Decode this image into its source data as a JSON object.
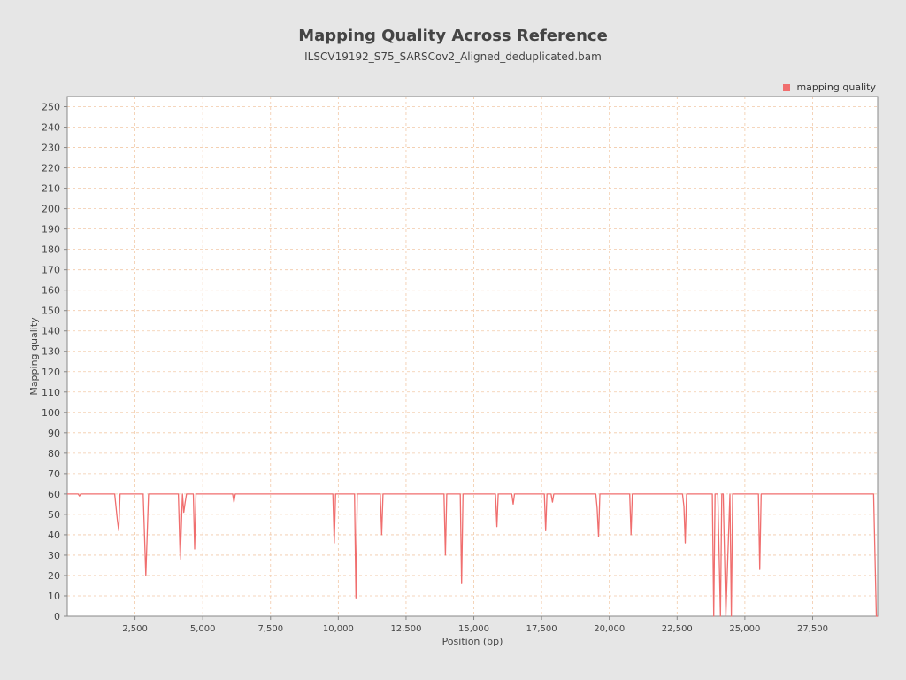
{
  "colors": {
    "background": "#e6e6e6",
    "plot_background": "#ffffff",
    "grid": "#f2c9a8",
    "series": "#f06e6e",
    "axis": "#888888",
    "text": "#444444"
  },
  "chart_data": {
    "type": "line",
    "title": "Mapping Quality Across Reference",
    "subtitle": "ILSCV19192_S75_SARSCov2_Aligned_deduplicated.bam",
    "xlabel": "Position (bp)",
    "ylabel": "Mapping quality",
    "xlim": [
      0,
      29900
    ],
    "ylim": [
      0,
      255
    ],
    "xticks": [
      2500,
      5000,
      7500,
      10000,
      12500,
      15000,
      17500,
      20000,
      22500,
      25000,
      27500
    ],
    "xtick_labels": [
      "2,500",
      "5,000",
      "7,500",
      "10,000",
      "12,500",
      "15,000",
      "17,500",
      "20,000",
      "22,500",
      "25,000",
      "27,500"
    ],
    "yticks": [
      0,
      10,
      20,
      30,
      40,
      50,
      60,
      70,
      80,
      90,
      100,
      110,
      120,
      130,
      140,
      150,
      160,
      170,
      180,
      190,
      200,
      210,
      220,
      230,
      240,
      250
    ],
    "grid": true,
    "legend_position": "top-right",
    "series": [
      {
        "name": "mapping quality",
        "x": [
          0,
          400,
          450,
          500,
          1750,
          1850,
          1900,
          1950,
          2800,
          2900,
          3000,
          4100,
          4170,
          4250,
          4300,
          4350,
          4400,
          4650,
          4700,
          4750,
          6100,
          6150,
          6200,
          6250,
          9800,
          9850,
          9900,
          9950,
          10600,
          10650,
          10700,
          10750,
          11550,
          11600,
          11650,
          11700,
          13900,
          13950,
          14000,
          14500,
          14550,
          14600,
          14650,
          15800,
          15850,
          15900,
          16400,
          16450,
          16500,
          16550,
          17600,
          17650,
          17700,
          17850,
          17900,
          17950,
          19500,
          19550,
          19600,
          19650,
          20750,
          20800,
          20850,
          20900,
          22700,
          22750,
          22800,
          22850,
          23800,
          23850,
          23900,
          24000,
          24100,
          24150,
          24200,
          24300,
          24450,
          24500,
          24550,
          24650,
          25500,
          25550,
          25600,
          25650,
          29750,
          29850,
          29900
        ],
        "values": [
          60,
          60,
          59,
          60,
          60,
          47,
          42,
          60,
          60,
          20,
          60,
          60,
          28,
          60,
          51,
          56,
          60,
          60,
          33,
          60,
          60,
          56,
          60,
          60,
          60,
          36,
          60,
          60,
          60,
          9,
          60,
          60,
          60,
          40,
          60,
          60,
          60,
          30,
          60,
          60,
          16,
          60,
          60,
          60,
          44,
          60,
          60,
          55,
          60,
          60,
          60,
          42,
          60,
          60,
          56,
          60,
          60,
          53,
          39,
          60,
          60,
          40,
          60,
          60,
          60,
          54,
          36,
          60,
          60,
          0,
          60,
          60,
          0,
          60,
          60,
          0,
          60,
          0,
          60,
          60,
          60,
          23,
          60,
          60,
          60,
          0,
          0
        ]
      }
    ]
  }
}
